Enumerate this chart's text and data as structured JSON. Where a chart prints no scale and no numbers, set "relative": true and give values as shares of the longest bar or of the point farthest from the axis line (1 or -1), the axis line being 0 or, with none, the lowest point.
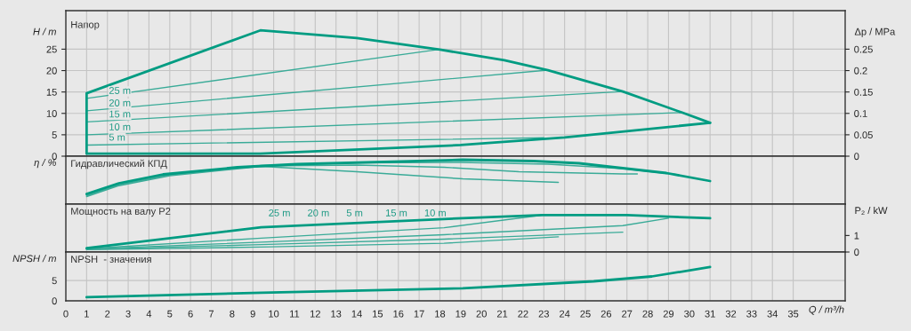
{
  "chart_data": [
    {
      "type": "line",
      "title": "Напор",
      "ylabel": "H / m",
      "y2label": "Δp / MPa",
      "xlim": [
        0,
        37.5
      ],
      "xticks": [
        0,
        1,
        2,
        3,
        4,
        5,
        6,
        7,
        8,
        9,
        10,
        11,
        12,
        13,
        14,
        15,
        16,
        17,
        18,
        19,
        20,
        21,
        22,
        23,
        24,
        25,
        26,
        27,
        28,
        29,
        30,
        31,
        32,
        33,
        34,
        35
      ],
      "ylim": [
        0,
        34
      ],
      "yticks": [
        0,
        5,
        10,
        15,
        20,
        25
      ],
      "y2lim": [
        0,
        0.34
      ],
      "y2ticks": [
        0,
        0.05,
        0.1,
        0.15,
        0.2,
        0.25
      ],
      "grid": true,
      "tick_labels": "y",
      "series": [
        {
          "color": "#009c82",
          "x": [
            1,
            1,
            9.36,
            14,
            18,
            21.1,
            23.2,
            26.8,
            29.65,
            31
          ],
          "values": [
            0.6,
            14.7,
            29.4,
            27.6,
            24.9,
            22.4,
            20.1,
            15.1,
            10.2,
            7.8
          ]
        },
        {
          "color": "#009c82",
          "x": [
            1,
            9.36,
            19,
            24,
            31
          ],
          "values": [
            0.6,
            0.6,
            2.6,
            4.4,
            7.8
          ]
        },
        {
          "color": "#3aab98",
          "x": [
            1,
            17.9
          ],
          "values": [
            13.5,
            24.9
          ]
        },
        {
          "color": "#3aab98",
          "x": [
            1,
            23.2
          ],
          "values": [
            10.6,
            20.1
          ]
        },
        {
          "color": "#3aab98",
          "x": [
            1,
            26.8
          ],
          "values": [
            8.0,
            15.1
          ]
        },
        {
          "color": "#3aab98",
          "x": [
            1,
            29.65
          ],
          "values": [
            5.0,
            10.2
          ]
        },
        {
          "color": "#3aab98",
          "x": [
            1,
            23.0
          ],
          "values": [
            2.6,
            4.3
          ]
        }
      ],
      "annotations": [
        "25 m",
        "20 m",
        "15 m",
        "10 m",
        "5 m"
      ]
    },
    {
      "type": "line",
      "title": "Гидравлический КПД",
      "ylabel": "η / %",
      "relative": true,
      "xlim": [
        0,
        37.5
      ],
      "xticks": [
        0,
        1,
        2,
        3,
        4,
        5,
        6,
        7,
        8,
        9,
        10,
        11,
        12,
        13,
        14,
        15,
        16,
        17,
        18,
        19,
        20,
        21,
        22,
        23,
        24,
        25,
        26,
        27,
        28,
        29,
        30,
        31,
        32,
        33,
        34,
        35
      ],
      "grid": true,
      "tick_labels": false,
      "series": [
        {
          "color": "#009c82",
          "x": [
            1,
            2.55,
            4.68,
            8.25,
            11.1,
            19.1,
            22.5,
            24.7,
            26.8,
            28.9,
            31
          ],
          "values": [
            0.23,
            0.47,
            0.67,
            0.83,
            0.9,
            1.0,
            0.97,
            0.92,
            0.81,
            0.7,
            0.52
          ]
        },
        {
          "color": "#3aab98",
          "x": [
            1,
            2.5,
            5,
            9.4,
            14,
            19,
            23.2,
            26.8,
            29.5
          ],
          "values": [
            0.21,
            0.45,
            0.67,
            0.87,
            0.93,
            0.94,
            0.9,
            0.8,
            0.66
          ]
        },
        {
          "color": "#3aab98",
          "x": [
            1,
            2.5,
            5,
            9.4,
            14,
            18.2,
            21.8,
            26.8,
            27.5
          ],
          "values": [
            0.19,
            0.43,
            0.66,
            0.86,
            0.88,
            0.83,
            0.73,
            0.68,
            0.68
          ]
        },
        {
          "color": "#3aab98",
          "x": [
            1,
            2.5,
            5,
            9.4,
            14,
            19.1,
            23.7
          ],
          "values": [
            0.17,
            0.41,
            0.64,
            0.85,
            0.73,
            0.57,
            0.49
          ]
        }
      ]
    },
    {
      "type": "line",
      "title": "Мощность на валу P2",
      "y2label": "P₂ / kW",
      "xlim": [
        0,
        37.5
      ],
      "xticks": [
        0,
        1,
        2,
        3,
        4,
        5,
        6,
        7,
        8,
        9,
        10,
        11,
        12,
        13,
        14,
        15,
        16,
        17,
        18,
        19,
        20,
        21,
        22,
        23,
        24,
        25,
        26,
        27,
        28,
        29,
        30,
        31,
        32,
        33,
        34,
        35
      ],
      "y2lim": [
        0,
        2.9
      ],
      "y2ticks": [
        0,
        1
      ],
      "grid": true,
      "tick_labels": "y",
      "series": [
        {
          "color": "#009c82",
          "axis": "y2",
          "x": [
            1,
            9.4,
            19.1,
            22.9,
            27,
            31
          ],
          "values": [
            0.24,
            1.5,
            2.05,
            2.23,
            2.23,
            2.05
          ]
        },
        {
          "color": "#3aab98",
          "axis": "y2",
          "x": [
            1,
            9.4,
            18.2,
            22.9
          ],
          "values": [
            0.2,
            0.84,
            1.47,
            2.23
          ]
        },
        {
          "color": "#3aab98",
          "axis": "y2",
          "x": [
            1,
            9.4,
            18.2,
            26.8,
            29
          ],
          "values": [
            0.18,
            0.6,
            1.05,
            1.6,
            2.05
          ]
        },
        {
          "color": "#3aab98",
          "axis": "y2",
          "x": [
            1,
            9.4,
            18.2,
            26.8
          ],
          "values": [
            0.16,
            0.45,
            0.78,
            1.2
          ]
        },
        {
          "color": "#3aab98",
          "axis": "y2",
          "x": [
            1,
            9.4,
            18.2,
            23.7
          ],
          "values": [
            0.14,
            0.3,
            0.53,
            0.92
          ]
        }
      ],
      "annotations": [
        "25 m",
        "20 m",
        "5 m",
        "15 m",
        "10 m"
      ]
    },
    {
      "type": "line",
      "title": "NPSH  - значения",
      "ylabel": "NPSH / m",
      "xlabel": "Q / m³/h",
      "xlim": [
        0,
        37.5
      ],
      "xticks": [
        0,
        1,
        2,
        3,
        4,
        5,
        6,
        7,
        8,
        9,
        10,
        11,
        12,
        13,
        14,
        15,
        16,
        17,
        18,
        19,
        20,
        21,
        22,
        23,
        24,
        25,
        26,
        27,
        28,
        29,
        30,
        31,
        32,
        33,
        34,
        35
      ],
      "ylim": [
        0,
        12
      ],
      "yticks": [
        0,
        5
      ],
      "grid": true,
      "series": [
        {
          "color": "#009c82",
          "x": [
            1,
            9.4,
            19.1,
            25.4,
            28.2,
            31
          ],
          "values": [
            0.9,
            2.0,
            3.1,
            4.8,
            6.0,
            8.3
          ]
        }
      ]
    }
  ]
}
